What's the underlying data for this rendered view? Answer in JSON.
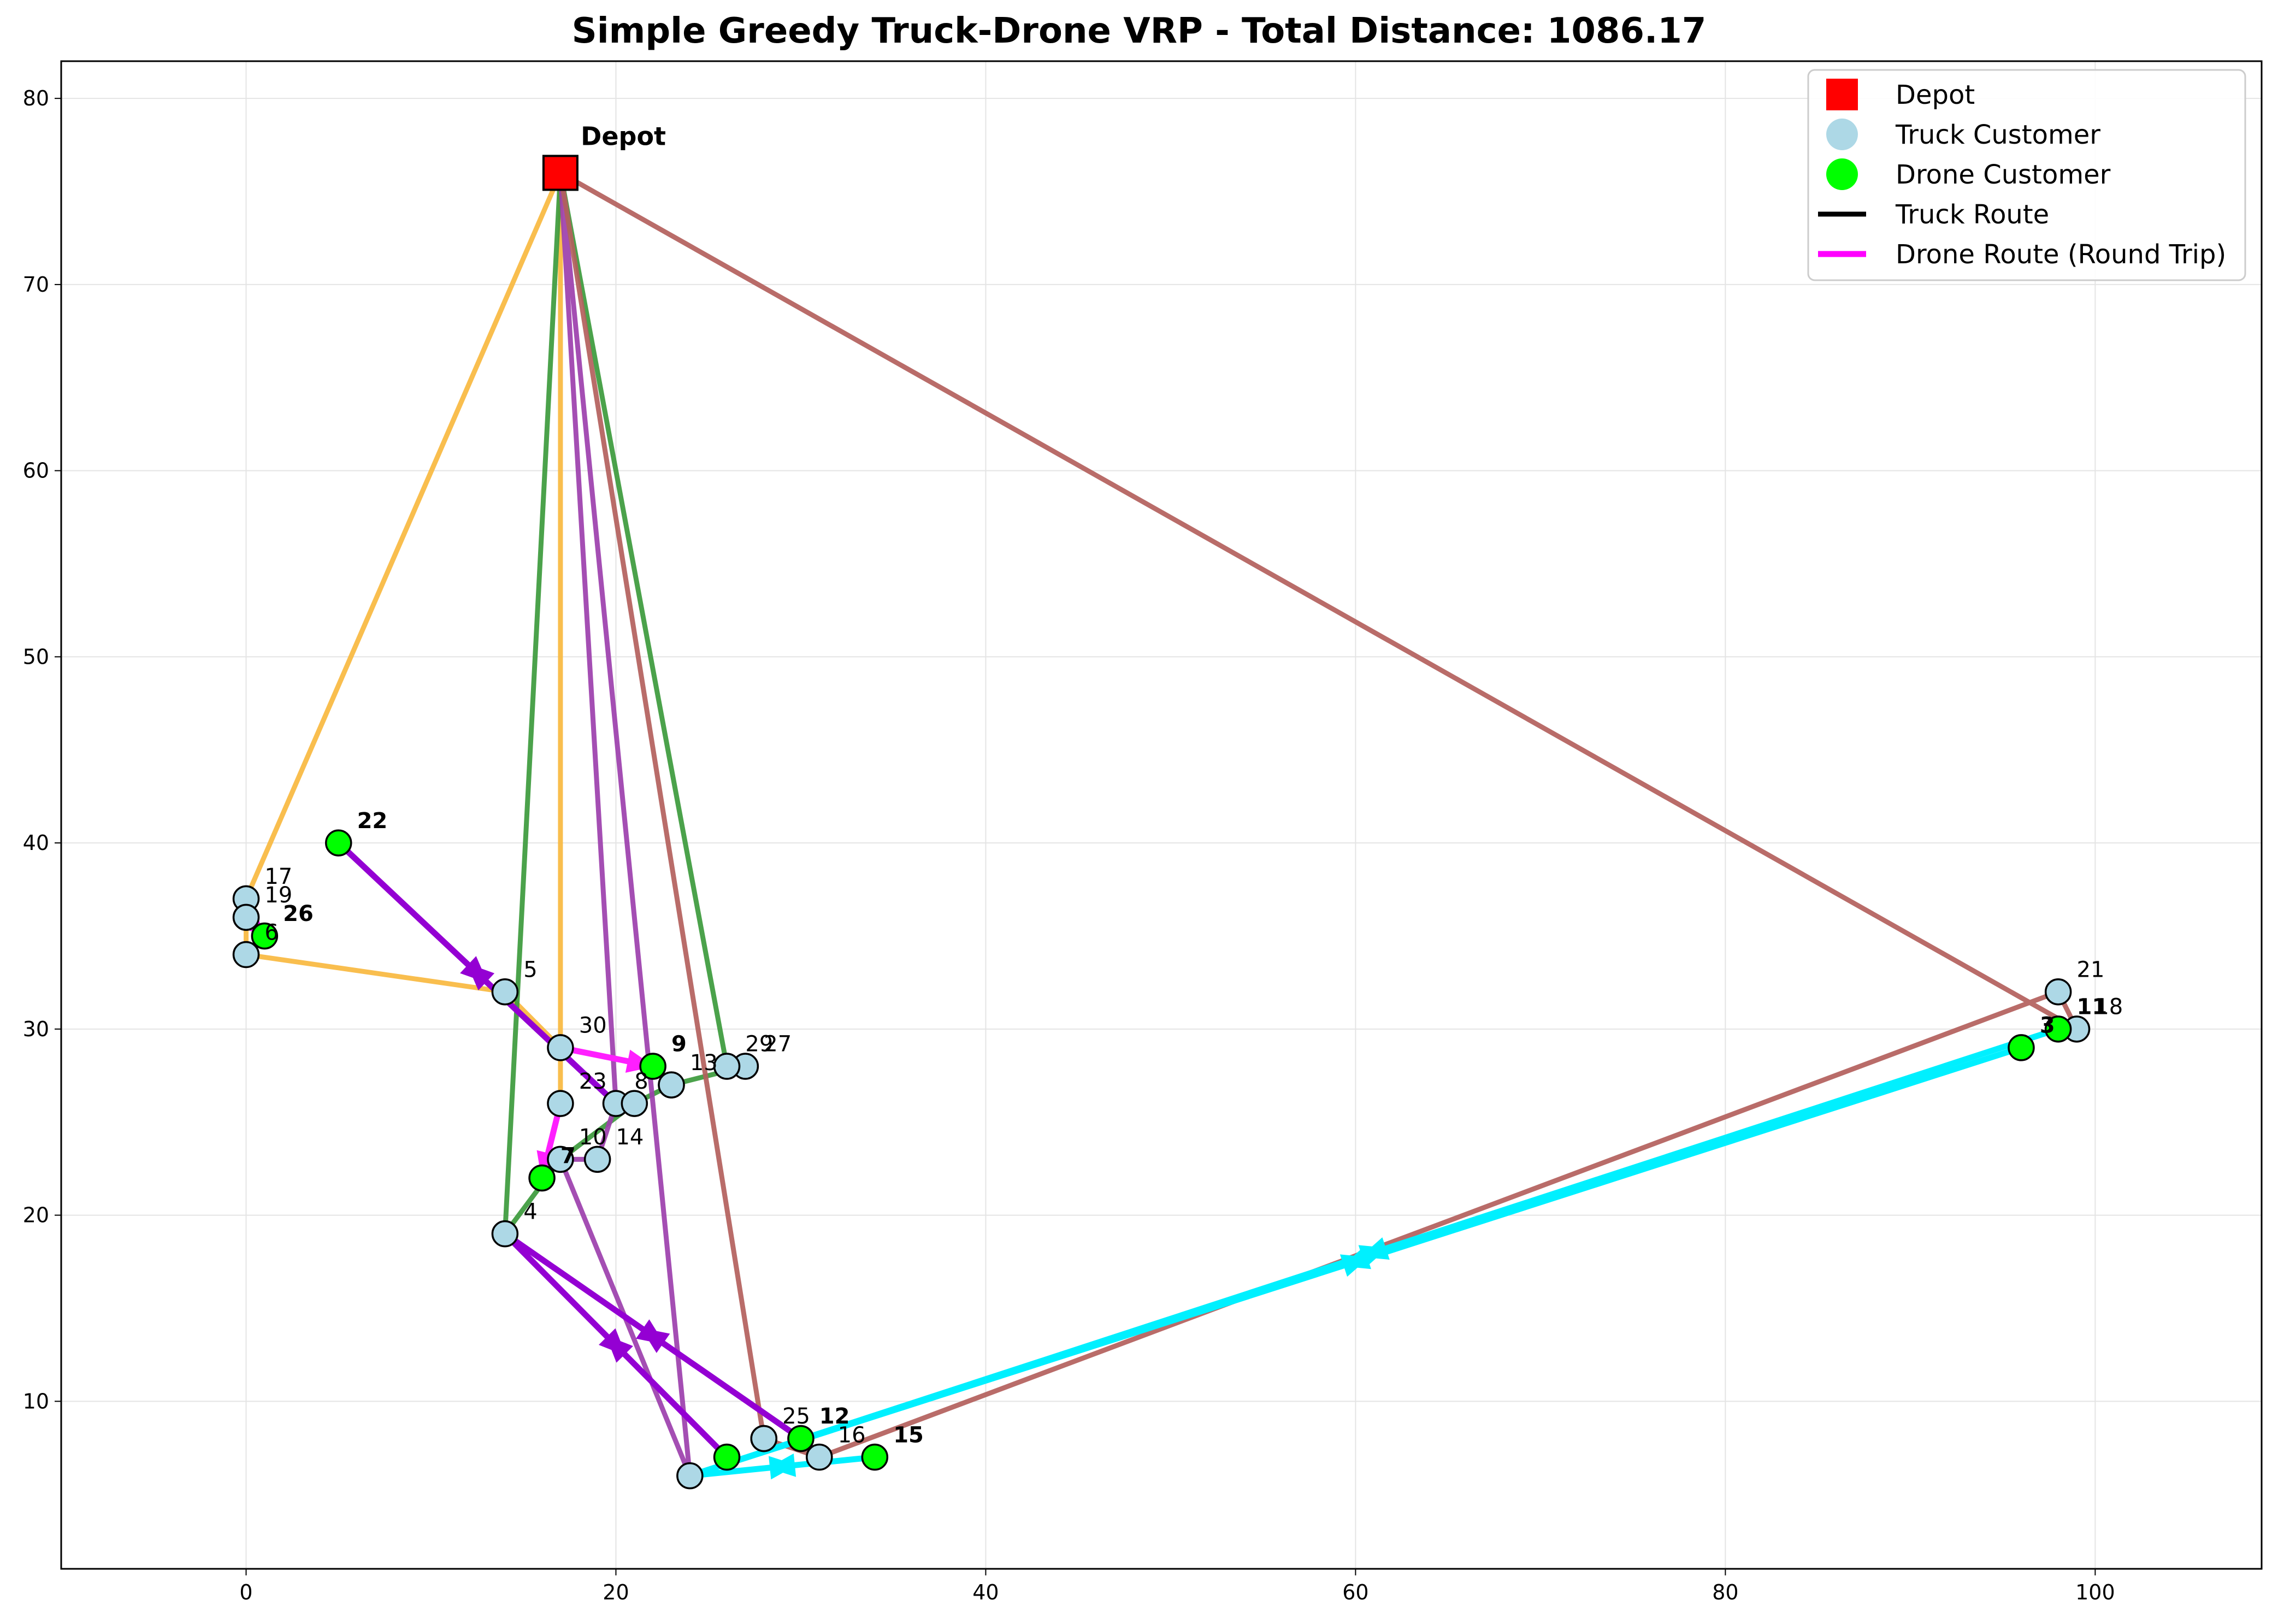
{
  "chart_data": {
    "type": "scatter",
    "title": "Simple Greedy Truck-Drone VRP - Total Distance: 1086.17",
    "xlim": [
      -10,
      109
    ],
    "ylim": [
      1,
      82
    ],
    "xticks": [
      0,
      20,
      40,
      60,
      80,
      100
    ],
    "yticks": [
      10,
      20,
      30,
      40,
      50,
      60,
      70,
      80
    ],
    "grid": true,
    "legend_position": "top-right",
    "legend": [
      {
        "label": "Depot",
        "kind": "square",
        "color": "#ff0000"
      },
      {
        "label": "Truck Customer",
        "kind": "circle",
        "color": "#add8e6"
      },
      {
        "label": "Drone Customer",
        "kind": "circle",
        "color": "#00ff00"
      },
      {
        "label": "Truck Route",
        "kind": "line",
        "color": "#000000"
      },
      {
        "label": "Drone Route (Round Trip)",
        "kind": "line",
        "color": "#ff00ff"
      }
    ],
    "depot": {
      "label": "Depot",
      "x": 17,
      "y": 76
    },
    "truck_customers": [
      {
        "id": "1",
        "x": 23,
        "y": 27
      },
      {
        "id": "2",
        "x": 28,
        "y": 8
      },
      {
        "id": "4",
        "x": 14,
        "y": 19
      },
      {
        "id": "5",
        "x": 14,
        "y": 32
      },
      {
        "id": "6",
        "x": 0,
        "y": 34
      },
      {
        "id": "8",
        "x": 20,
        "y": 26
      },
      {
        "id": "10",
        "x": 17,
        "y": 23
      },
      {
        "id": "13",
        "x": 23,
        "y": 27
      },
      {
        "id": "14",
        "x": 19,
        "y": 23
      },
      {
        "id": "16",
        "x": 31,
        "y": 7
      },
      {
        "id": "17",
        "x": 0,
        "y": 37
      },
      {
        "id": "18",
        "x": 99,
        "y": 30
      },
      {
        "id": "19",
        "x": 0,
        "y": 36
      },
      {
        "id": "20",
        "x": 24,
        "y": 6
      },
      {
        "id": "21",
        "x": 98,
        "y": 32
      },
      {
        "id": "23",
        "x": 17,
        "y": 26
      },
      {
        "id": "24",
        "x": 21,
        "y": 26
      },
      {
        "id": "25",
        "x": 28,
        "y": 8
      },
      {
        "id": "27",
        "x": 27,
        "y": 28
      },
      {
        "id": "29",
        "x": 26,
        "y": 28
      },
      {
        "id": "30",
        "x": 17,
        "y": 29
      }
    ],
    "drone_customers": [
      {
        "id": "3",
        "x": 96,
        "y": 29
      },
      {
        "id": "7",
        "x": 16,
        "y": 22
      },
      {
        "id": "9",
        "x": 22,
        "y": 28
      },
      {
        "id": "11",
        "x": 98,
        "y": 30
      },
      {
        "id": "12",
        "x": 30,
        "y": 8
      },
      {
        "id": "15",
        "x": 34,
        "y": 7
      },
      {
        "id": "22",
        "x": 5,
        "y": 40
      },
      {
        "id": "26",
        "x": 1,
        "y": 35
      },
      {
        "id": "28",
        "x": 26,
        "y": 7
      }
    ],
    "truck_routes": [
      {
        "color": "#f9b93f",
        "points": [
          [
            17,
            76
          ],
          [
            0,
            37
          ],
          [
            0,
            36
          ],
          [
            0,
            34
          ],
          [
            14,
            32
          ],
          [
            17,
            29
          ],
          [
            17,
            26
          ],
          [
            17,
            76
          ]
        ]
      },
      {
        "color": "#3c9a3c",
        "points": [
          [
            17,
            76
          ],
          [
            26,
            28
          ],
          [
            27,
            28
          ],
          [
            23,
            27
          ],
          [
            21,
            26
          ],
          [
            17,
            23
          ],
          [
            14,
            19
          ],
          [
            17,
            76
          ]
        ]
      },
      {
        "color": "#9c3fac",
        "points": [
          [
            17,
            76
          ],
          [
            20,
            26
          ],
          [
            19,
            23
          ],
          [
            17,
            23
          ],
          [
            24,
            6
          ],
          [
            17,
            76
          ]
        ]
      },
      {
        "color": "#b35f5c",
        "points": [
          [
            17,
            76
          ],
          [
            99,
            30
          ],
          [
            98,
            32
          ],
          [
            31,
            7
          ],
          [
            28,
            8
          ],
          [
            17,
            76
          ]
        ]
      }
    ],
    "drone_routes": [
      {
        "color": "#ff1fff",
        "points": [
          [
            0,
            36
          ],
          [
            1,
            35
          ]
        ]
      },
      {
        "color": "#ff1fff",
        "points": [
          [
            17,
            29
          ],
          [
            22,
            28
          ]
        ]
      },
      {
        "color": "#ff1fff",
        "points": [
          [
            17,
            26
          ],
          [
            16,
            22
          ]
        ]
      },
      {
        "color": "#9400d3",
        "points": [
          [
            20,
            26
          ],
          [
            5,
            40
          ]
        ]
      },
      {
        "color": "#9400d3",
        "points": [
          [
            14,
            19
          ],
          [
            30,
            8
          ]
        ]
      },
      {
        "color": "#9400d3",
        "points": [
          [
            14,
            19
          ],
          [
            26,
            7
          ]
        ]
      },
      {
        "color": "#00f0ff",
        "points": [
          [
            24,
            6
          ],
          [
            98,
            30
          ]
        ]
      },
      {
        "color": "#00f0ff",
        "points": [
          [
            24,
            6
          ],
          [
            96,
            29
          ]
        ]
      },
      {
        "color": "#00f0ff",
        "points": [
          [
            24,
            6
          ],
          [
            34,
            7
          ]
        ]
      }
    ],
    "point_labels": [
      {
        "text": "Depot",
        "x": 17,
        "y": 76,
        "style": "depot",
        "dx": 1.1,
        "dy": 1.5
      },
      {
        "text": "17",
        "x": 0,
        "y": 37,
        "style": "normal"
      },
      {
        "text": "19",
        "x": 0,
        "y": 36,
        "style": "normal"
      },
      {
        "text": "6",
        "x": 0,
        "y": 34,
        "style": "normal",
        "dx": 1.0,
        "dy": 0.8
      },
      {
        "text": "26",
        "x": 1,
        "y": 35,
        "style": "bold"
      },
      {
        "text": "22",
        "x": 5,
        "y": 40,
        "style": "bold"
      },
      {
        "text": "5",
        "x": 14,
        "y": 32,
        "style": "normal"
      },
      {
        "text": "30",
        "x": 17,
        "y": 29,
        "style": "normal"
      },
      {
        "text": "9",
        "x": 22,
        "y": 28,
        "style": "bold"
      },
      {
        "text": "13",
        "x": 23,
        "y": 27,
        "style": "normal",
        "dx": 1.0,
        "dy": 0.8
      },
      {
        "text": "29",
        "x": 26,
        "y": 28,
        "style": "normal"
      },
      {
        "text": "27",
        "x": 27,
        "y": 28,
        "style": "normal"
      },
      {
        "text": "23",
        "x": 17,
        "y": 26,
        "style": "normal"
      },
      {
        "text": "8",
        "x": 20,
        "y": 26,
        "style": "normal"
      },
      {
        "text": "10",
        "x": 17,
        "y": 23,
        "style": "normal"
      },
      {
        "text": "14",
        "x": 19,
        "y": 23,
        "style": "normal"
      },
      {
        "text": "4",
        "x": 14,
        "y": 19,
        "style": "normal"
      },
      {
        "text": "7",
        "x": 16,
        "y": 22,
        "style": "bold"
      },
      {
        "text": "25",
        "x": 28,
        "y": 8,
        "style": "normal"
      },
      {
        "text": "12",
        "x": 30,
        "y": 8,
        "style": "bold"
      },
      {
        "text": "16",
        "x": 31,
        "y": 7,
        "style": "normal"
      },
      {
        "text": "15",
        "x": 34,
        "y": 7,
        "style": "bold"
      },
      {
        "text": "21",
        "x": 98,
        "y": 32,
        "style": "normal"
      },
      {
        "text": "11",
        "x": 98,
        "y": 30,
        "style": "bold"
      },
      {
        "text": "18",
        "x": 99,
        "y": 30,
        "style": "normal"
      },
      {
        "text": "3",
        "x": 96,
        "y": 29,
        "style": "bold"
      }
    ]
  }
}
